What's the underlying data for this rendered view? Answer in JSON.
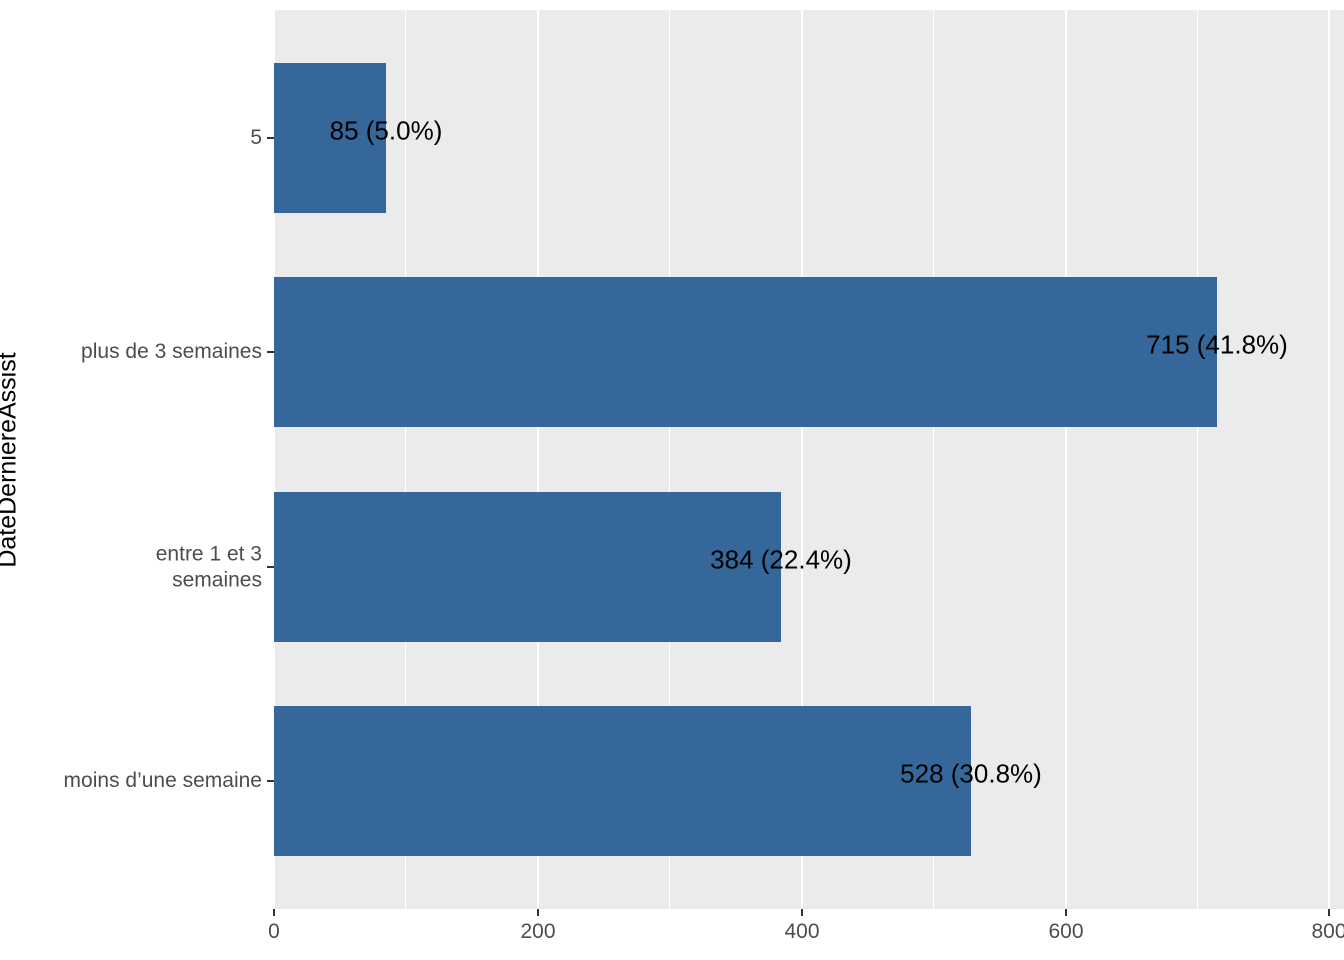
{
  "chart_data": {
    "type": "bar",
    "orientation": "horizontal",
    "title": "",
    "ylabel": "DateDerniereAssist",
    "xlabel": "",
    "bars": [
      {
        "category": "5",
        "value": 85,
        "percent": 5.0,
        "label": "85 (5.0%)"
      },
      {
        "category": "plus de 3 semaines",
        "value": 715,
        "percent": 41.8,
        "label": "715 (41.8%)"
      },
      {
        "category": "entre 1 et 3\nsemaines",
        "value": 384,
        "percent": 22.4,
        "label": "384 (22.4%)"
      },
      {
        "category": "moins d’une semaine",
        "value": 528,
        "percent": 30.8,
        "label": "528 (30.8%)"
      }
    ],
    "x_axis": {
      "tick_values": [
        0,
        200,
        400,
        600,
        800
      ],
      "tick_labels": [
        "0",
        "200",
        "400",
        "600",
        "800"
      ],
      "minor_tick_values": [
        100,
        300,
        500,
        700
      ],
      "limit_min": 0,
      "limit_max": 811
    },
    "legend": null,
    "grid": "major-and-minor-vertical",
    "colors": {
      "bar_fill": "#36679A",
      "panel_background": "#EBEBEB",
      "gridline": "#FFFFFF",
      "tick_text": "#4D4D4D",
      "tick_mark": "#333333",
      "bar_label_text": "#000000",
      "axis_title_text": "#000000"
    }
  }
}
